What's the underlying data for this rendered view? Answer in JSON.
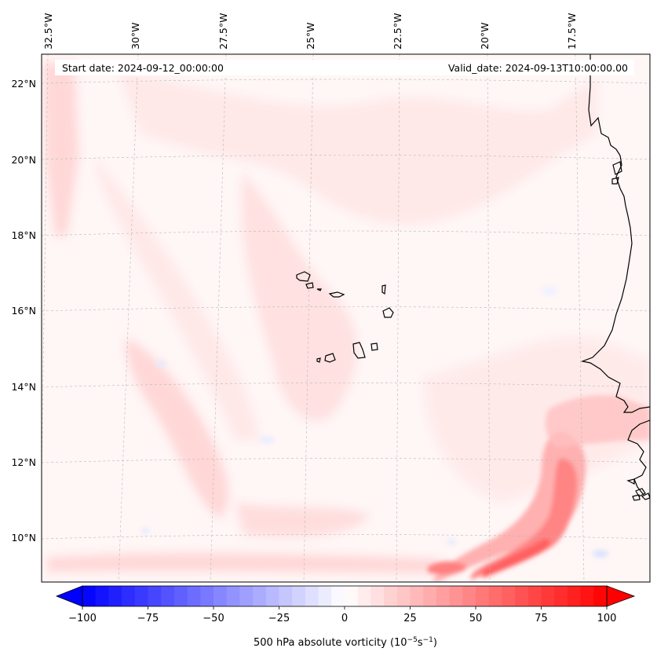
{
  "map": {
    "projection": "lambert-conformal",
    "region": "Eastern tropical Atlantic / Cape Verde / West African coast",
    "header": {
      "start_date": "Start date: 2024-09-12_00:00:00",
      "valid_date": "Valid_date: 2024-09-13T10:00:00.00"
    },
    "lon_labels": [
      "32.5°W",
      "30°W",
      "27.5°W",
      "25°W",
      "22.5°W",
      "20°W",
      "17.5°W"
    ],
    "lat_labels": [
      "22°N",
      "20°N",
      "18°N",
      "16°N",
      "14°N",
      "12°N",
      "10°N"
    ],
    "gridlines": true
  },
  "colorbar": {
    "title": "500 hPa absolute vorticity (10",
    "title_exp1": "−5",
    "title_mid": "s",
    "title_exp2": "−1",
    "title_end": ")",
    "min": -100,
    "max": 100,
    "step": 5,
    "tick_values": [
      -100,
      -75,
      -50,
      -25,
      0,
      25,
      50,
      75,
      100
    ],
    "tick_labels": [
      "−100",
      "−75",
      "−50",
      "−25",
      "0",
      "25",
      "50",
      "75",
      "100"
    ],
    "extend": "both",
    "colormap": "bwr",
    "colors": {
      "negative": "#0000ff",
      "zero": "#ffffff",
      "positive": "#ff0000"
    }
  }
}
